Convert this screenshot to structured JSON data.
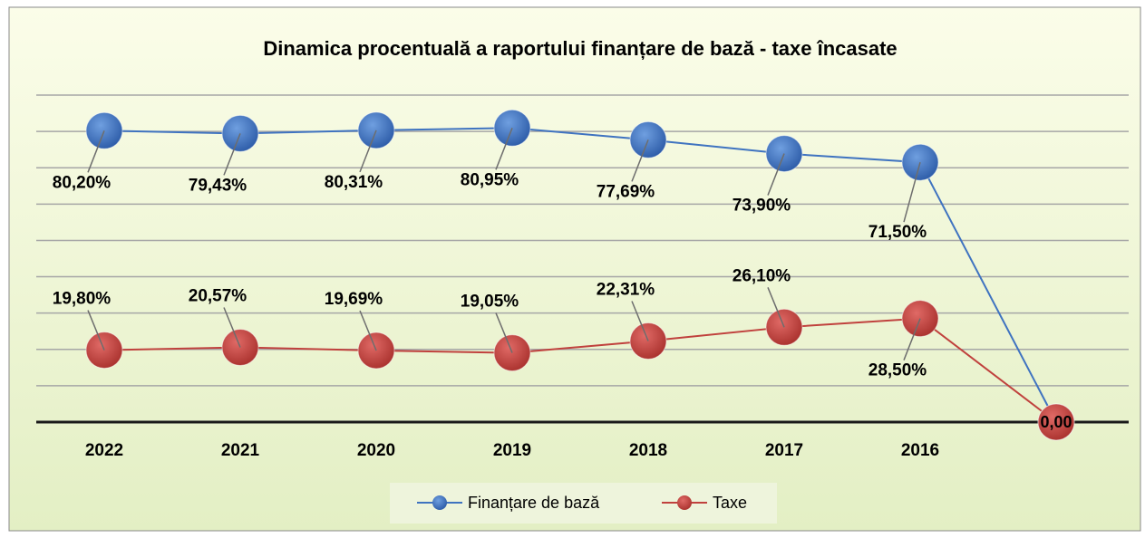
{
  "chart_data": {
    "type": "line",
    "title": "Dinamica procentuală a raportului finanțare de bază - taxe încasate",
    "categories": [
      "2022",
      "2021",
      "2020",
      "2019",
      "2018",
      "2017",
      "2016",
      null
    ],
    "series": [
      {
        "name": "Finanțare de bază",
        "color": "#3f73c0",
        "values": [
          80.2,
          79.43,
          80.31,
          80.95,
          77.69,
          73.9,
          71.5,
          0
        ],
        "value_labels": [
          "80,20%",
          "79,43%",
          "80,31%",
          "80,95%",
          "77,69%",
          "73,90%",
          "71,50%",
          null
        ]
      },
      {
        "name": "Taxe",
        "color": "#c0413d",
        "values": [
          19.8,
          20.57,
          19.69,
          19.05,
          22.31,
          26.1,
          28.5,
          0
        ],
        "value_labels": [
          "19,80%",
          "20,57%",
          "19,69%",
          "19,05%",
          "22,31%",
          "26,10%",
          "28,50%",
          "0,00"
        ]
      }
    ],
    "ylim": [
      0,
      90
    ],
    "yticks": [
      0,
      10,
      20,
      30,
      40,
      50,
      60,
      70,
      80,
      90
    ],
    "grid": true,
    "legend": "bottom"
  }
}
